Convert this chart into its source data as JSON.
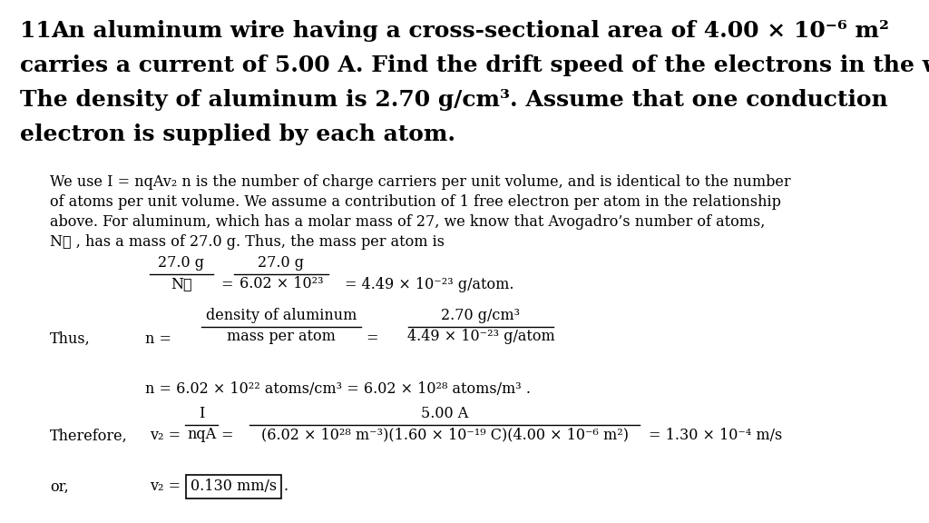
{
  "background_color": "#ffffff",
  "figsize": [
    10.24,
    5.76
  ],
  "dpi": 100,
  "body_line1": "We use I = nqAv₂ n is the number of charge carriers per unit volume, and is identical to the number",
  "body_line2": "of atoms per unit volume. We assume a contribution of 1 free electron per atom in the relationship",
  "body_line3": "above. For aluminum, which has a molar mass of 27, we know that Avogadro’s number of atoms,",
  "body_line4": "N⁁ , has a mass of 27.0 g. Thus, the mass per atom is",
  "thus_label": "Thus,",
  "therefore_label": "Therefore,",
  "or_label": "or,",
  "n_result": "n = 6.02 × 10²² atoms/cm³ = 6.02 × 10²⁸ atoms/m³ .",
  "vd_result": "= 1.30 × 10⁻⁴ m/s",
  "vd_final": "0.130 mm/s",
  "font_title": 18,
  "font_body": 11.5,
  "font_eq": 11.5
}
